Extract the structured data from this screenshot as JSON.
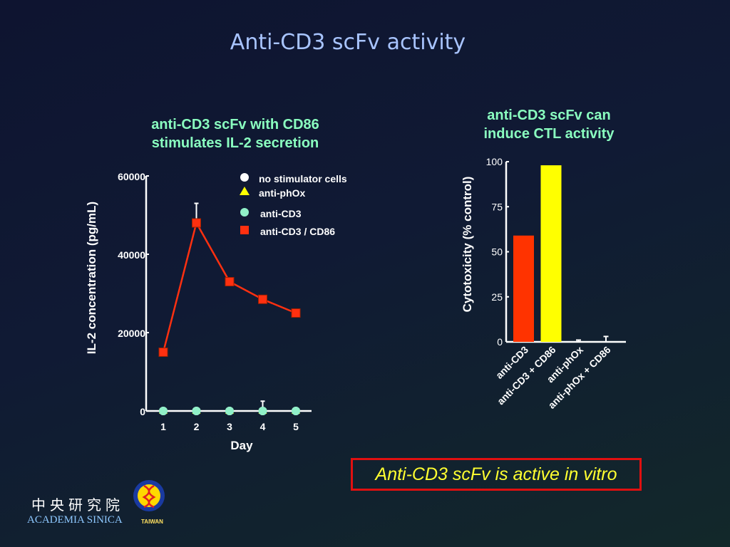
{
  "slide": {
    "title": "Anti-CD3 scFv activity",
    "left_subtitle": [
      "anti-CD3 scFv with CD86",
      "stimulates IL-2 secretion"
    ],
    "right_subtitle": [
      "anti-CD3 scFv can",
      "induce CTL activity"
    ],
    "conclusion": "Anti-CD3 scFv is active in vitro",
    "logo": {
      "chinese": "中央研究院",
      "english": "ACADEMIA SINICA",
      "seal_text": "TAIWAN"
    }
  },
  "chart_data": [
    {
      "type": "line",
      "xlabel": "Day",
      "ylabel": "IL-2 concentration (pg/mL)",
      "x": [
        1,
        2,
        3,
        4,
        5
      ],
      "ylim": [
        0,
        60000
      ],
      "yticks": [
        0,
        20000,
        40000,
        60000
      ],
      "grid": false,
      "legend_placement": "top-right",
      "series": [
        {
          "name": "no stimulator cells",
          "marker": "circle",
          "color": "#ffffff",
          "values": [
            0,
            0,
            0,
            0,
            0
          ]
        },
        {
          "name": "anti-phOx",
          "marker": "triangle",
          "color": "#ffff00",
          "values": [
            0,
            0,
            0,
            0,
            0
          ]
        },
        {
          "name": "anti-CD3",
          "marker": "circle",
          "color": "#90f0c8",
          "values": [
            0,
            0,
            0,
            0,
            0
          ],
          "error_upper": [
            0,
            0,
            0,
            2500,
            0
          ]
        },
        {
          "name": "anti-CD3 / CD86",
          "marker": "square",
          "color": "#ff3010",
          "values": [
            15000,
            48000,
            33000,
            28500,
            25000
          ],
          "error_upper": [
            0,
            53000,
            0,
            0,
            0
          ]
        }
      ]
    },
    {
      "type": "bar",
      "ylabel": "Cytotoxicity (% control)",
      "categories": [
        "anti-CD3",
        "anti-CD3 + CD86",
        "anti-phOx",
        "anti-phOx + CD86"
      ],
      "values": [
        59,
        98,
        0,
        0
      ],
      "error_upper": [
        0,
        0,
        1,
        3
      ],
      "colors": [
        "#ff3300",
        "#ffff00",
        "#ffffff",
        "#ffffff"
      ],
      "ylim": [
        0,
        100
      ],
      "yticks": [
        0,
        25,
        50,
        75,
        100
      ],
      "grid": false
    }
  ]
}
